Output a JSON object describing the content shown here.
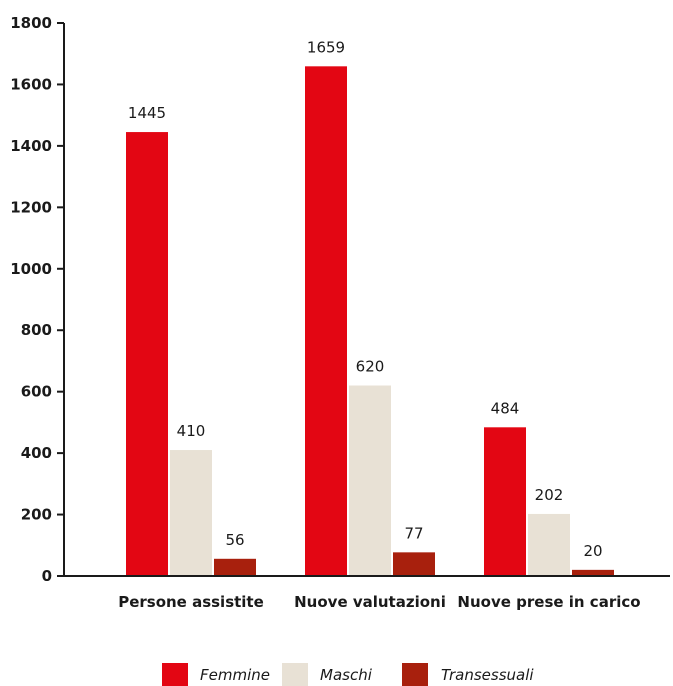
{
  "chart_data": {
    "type": "bar",
    "title": "",
    "xlabel": "",
    "ylabel": "",
    "ylim": [
      0,
      1800
    ],
    "yticks": [
      0,
      200,
      400,
      600,
      800,
      1000,
      1200,
      1400,
      1600,
      1800
    ],
    "grid": false,
    "legend_position": "bottom-center",
    "categories": [
      "Persone assistite",
      "Nuove valutazioni",
      "Nuove prese in carico"
    ],
    "series": [
      {
        "name": "Femmine",
        "color": "#e30613",
        "values": [
          1445,
          1659,
          484
        ]
      },
      {
        "name": "Maschi",
        "color": "#e8e1d5",
        "values": [
          410,
          620,
          202
        ]
      },
      {
        "name": "Transessuali",
        "color": "#a8200d",
        "values": [
          56,
          77,
          20
        ]
      }
    ]
  }
}
